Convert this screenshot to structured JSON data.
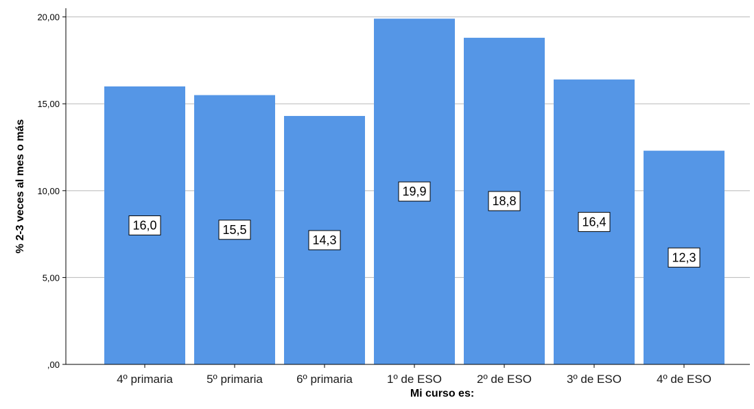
{
  "chart_data": {
    "type": "bar",
    "categories": [
      "4º primaria",
      "5º primaria",
      "6º primaria",
      "1º de ESO",
      "2º de ESO",
      "3º de ESO",
      "4º de ESO"
    ],
    "values": [
      16.0,
      15.5,
      14.3,
      19.9,
      18.8,
      16.4,
      12.3
    ],
    "data_labels": [
      "16,0",
      "15,5",
      "14,3",
      "19,9",
      "18,8",
      "16,4",
      "12,3"
    ],
    "xlabel": "Mi curso es:",
    "ylabel": "% 2-3 veces al mes o más",
    "ylim": [
      0,
      20
    ],
    "yticks": [
      0,
      5,
      10,
      15,
      20
    ],
    "ytick_labels": [
      ",00",
      "5,00",
      "10,00",
      "15,00",
      "20,00"
    ],
    "grid": true,
    "bar_color": "#5596e6"
  }
}
